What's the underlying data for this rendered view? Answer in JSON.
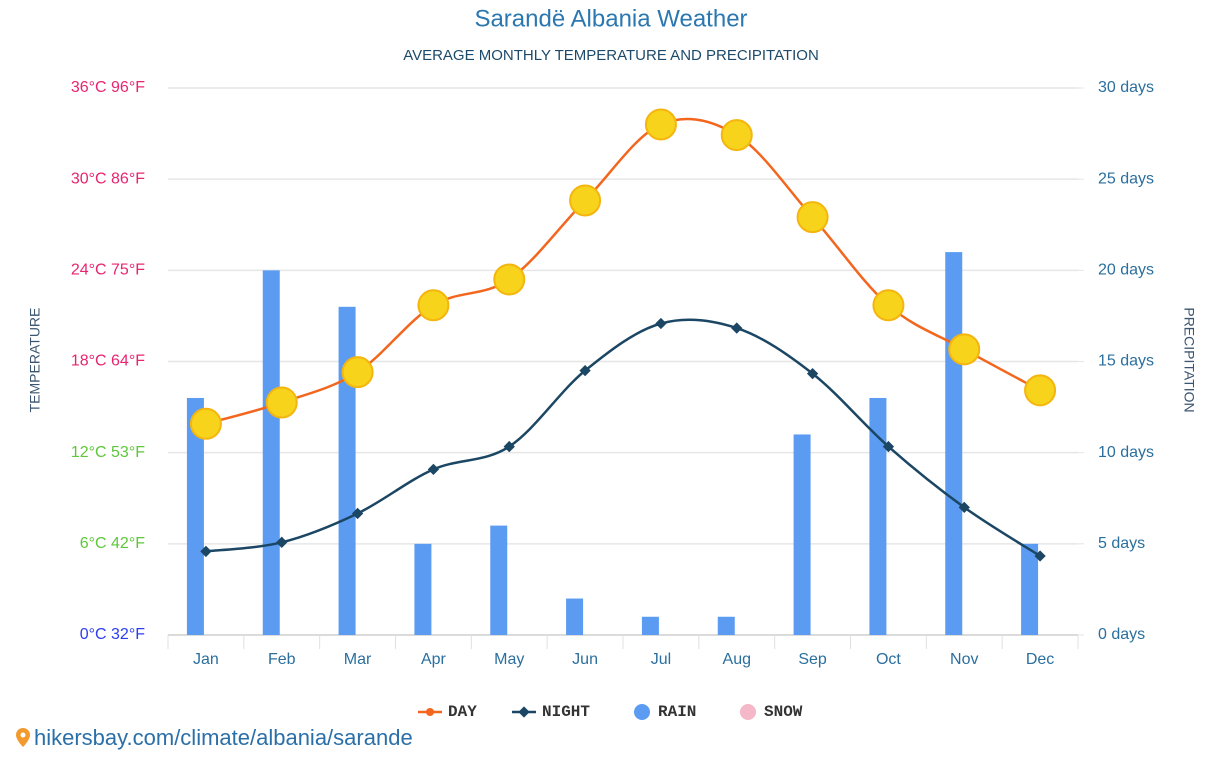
{
  "chart_data": {
    "type": "line",
    "title": "Sarandë Albania Weather",
    "subtitle": "AVERAGE MONTHLY TEMPERATURE AND PRECIPITATION",
    "y_label": "TEMPERATURE",
    "y2_label": "PRECIPITATION",
    "source": "hikersbay.com/climate/albania/sarande",
    "categories": [
      "Jan",
      "Feb",
      "Mar",
      "Apr",
      "May",
      "Jun",
      "Jul",
      "Aug",
      "Sep",
      "Oct",
      "Nov",
      "Dec"
    ],
    "ylim": [
      0,
      36
    ],
    "yticks": [
      {
        "value": 0,
        "label": "0°C 32°F"
      },
      {
        "value": 6,
        "label": "6°C 42°F"
      },
      {
        "value": 12,
        "label": "12°C 53°F"
      },
      {
        "value": 18,
        "label": "18°C 64°F"
      },
      {
        "value": 24,
        "label": "24°C 75°F"
      },
      {
        "value": 30,
        "label": "30°C 86°F"
      },
      {
        "value": 36,
        "label": "36°C 96°F"
      }
    ],
    "ytick_colors": [
      "#2b3df0",
      "#5fc63a",
      "#5fc63a",
      "#e8246f",
      "#e8246f",
      "#e8246f",
      "#e8246f"
    ],
    "y2lim": [
      0,
      30
    ],
    "y2ticks": [
      {
        "value": 0,
        "label": "0 days"
      },
      {
        "value": 5,
        "label": "5 days"
      },
      {
        "value": 10,
        "label": "10 days"
      },
      {
        "value": 15,
        "label": "15 days"
      },
      {
        "value": 20,
        "label": "20 days"
      },
      {
        "value": 25,
        "label": "25 days"
      },
      {
        "value": 30,
        "label": "30 days"
      }
    ],
    "grid": true,
    "legend": "bottom",
    "series": [
      {
        "name": "DAY",
        "color": "#f2661e",
        "kind": "line",
        "values": [
          13.9,
          15.3,
          17.3,
          21.7,
          23.4,
          28.6,
          33.6,
          32.9,
          27.5,
          21.7,
          18.8,
          16.1
        ]
      },
      {
        "name": "NIGHT",
        "color": "#1b4664",
        "kind": "line",
        "values": [
          5.5,
          6.1,
          8.0,
          10.9,
          12.4,
          17.4,
          20.5,
          20.2,
          17.2,
          12.4,
          8.4,
          5.2
        ]
      },
      {
        "name": "RAIN",
        "color": "#5b9cf2",
        "kind": "bar",
        "axis": "y2",
        "values": [
          13,
          20,
          18,
          5,
          6,
          2,
          1,
          1,
          11,
          13,
          21,
          5
        ]
      },
      {
        "name": "SNOW",
        "color": "#f5b8c8",
        "kind": "bar",
        "axis": "y2",
        "values": [
          0,
          0,
          0,
          0,
          0,
          0,
          0,
          0,
          0,
          0,
          0,
          0
        ]
      }
    ]
  }
}
